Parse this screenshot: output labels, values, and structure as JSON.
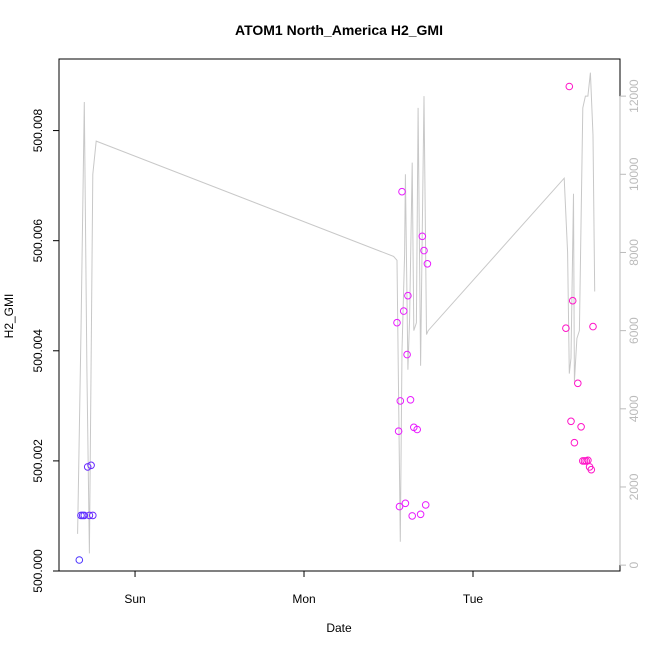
{
  "chart_data": {
    "type": "scatter",
    "title": "ATOM1 North_America H2_GMI",
    "xlabel": "Date",
    "ylabel": "H2_GMI",
    "x_ticks": [
      "Sun",
      "Mon",
      "Tue"
    ],
    "xlim_days": [
      -0.45,
      2.87
    ],
    "ylim": [
      500.0,
      500.0093
    ],
    "y_ticks": [
      {
        "value": 500.0,
        "label": "500.000"
      },
      {
        "value": 500.002,
        "label": "500.002"
      },
      {
        "value": 500.004,
        "label": "500.004"
      },
      {
        "value": 500.006,
        "label": "500.006"
      },
      {
        "value": 500.008,
        "label": "500.008"
      }
    ],
    "y2_lim": [
      -150,
      12950
    ],
    "y2_ticks": [
      {
        "value": 0,
        "label": "0"
      },
      {
        "value": 2000,
        "label": "2000"
      },
      {
        "value": 4000,
        "label": "4000"
      },
      {
        "value": 6000,
        "label": "6000"
      },
      {
        "value": 8000,
        "label": "8000"
      },
      {
        "value": 10000,
        "label": "10000"
      },
      {
        "value": 12000,
        "label": "12000"
      }
    ],
    "grid": false,
    "legend": "none",
    "colors": {
      "line": "#c8c8c8",
      "axis": "#000000",
      "right_axis": "#bbbbbb"
    },
    "points": [
      {
        "x": -0.33,
        "y": 500.0002,
        "color": "#4b33ff"
      },
      {
        "x": -0.32,
        "y": 500.00101,
        "color": "#5d2eff"
      },
      {
        "x": -0.31,
        "y": 500.00101,
        "color": "#5d2eff"
      },
      {
        "x": -0.3,
        "y": 500.00101,
        "color": "#5d2eff"
      },
      {
        "x": -0.28,
        "y": 500.00189,
        "color": "#6a2bff"
      },
      {
        "x": -0.27,
        "y": 500.00101,
        "color": "#6a2bff"
      },
      {
        "x": -0.26,
        "y": 500.00192,
        "color": "#6a2bff"
      },
      {
        "x": -0.25,
        "y": 500.00101,
        "color": "#6a2bff"
      },
      {
        "x": 1.55,
        "y": 500.00451,
        "color": "#e81cff"
      },
      {
        "x": 1.56,
        "y": 500.00254,
        "color": "#e81cff"
      },
      {
        "x": 1.565,
        "y": 500.00117,
        "color": "#e81cff"
      },
      {
        "x": 1.57,
        "y": 500.00309,
        "color": "#e81cff"
      },
      {
        "x": 1.58,
        "y": 500.00689,
        "color": "#e81cff"
      },
      {
        "x": 1.59,
        "y": 500.00472,
        "color": "#e81cff"
      },
      {
        "x": 1.6,
        "y": 500.00123,
        "color": "#e81cff"
      },
      {
        "x": 1.61,
        "y": 500.00393,
        "color": "#e81cff"
      },
      {
        "x": 1.615,
        "y": 500.005,
        "color": "#e81cff"
      },
      {
        "x": 1.63,
        "y": 500.00311,
        "color": "#e81cff"
      },
      {
        "x": 1.64,
        "y": 500.001,
        "color": "#e81cff"
      },
      {
        "x": 1.65,
        "y": 500.00261,
        "color": "#e81cff"
      },
      {
        "x": 1.67,
        "y": 500.00257,
        "color": "#e81cff"
      },
      {
        "x": 1.69,
        "y": 500.00103,
        "color": "#e81cff"
      },
      {
        "x": 1.7,
        "y": 500.00608,
        "color": "#e81cff"
      },
      {
        "x": 1.71,
        "y": 500.00582,
        "color": "#e81cff"
      },
      {
        "x": 1.72,
        "y": 500.0012,
        "color": "#e81cff"
      },
      {
        "x": 1.73,
        "y": 500.00558,
        "color": "#e81cff"
      },
      {
        "x": 2.55,
        "y": 500.00441,
        "color": "#ff14c8"
      },
      {
        "x": 2.57,
        "y": 500.0088,
        "color": "#ff14c8"
      },
      {
        "x": 2.58,
        "y": 500.00272,
        "color": "#ff14c8"
      },
      {
        "x": 2.59,
        "y": 500.00491,
        "color": "#ff14c8"
      },
      {
        "x": 2.6,
        "y": 500.00233,
        "color": "#ff14c8"
      },
      {
        "x": 2.62,
        "y": 500.00341,
        "color": "#ff14c8"
      },
      {
        "x": 2.64,
        "y": 500.00262,
        "color": "#ff14c8"
      },
      {
        "x": 2.65,
        "y": 500.002,
        "color": "#ff14c8"
      },
      {
        "x": 2.66,
        "y": 500.002,
        "color": "#ff14c8"
      },
      {
        "x": 2.67,
        "y": 500.002,
        "color": "#ff14c8"
      },
      {
        "x": 2.68,
        "y": 500.00201,
        "color": "#ff14c8"
      },
      {
        "x": 2.69,
        "y": 500.00189,
        "color": "#ff14c8"
      },
      {
        "x": 2.7,
        "y": 500.00184,
        "color": "#ff14c8"
      },
      {
        "x": 2.71,
        "y": 500.00444,
        "color": "#ff14c8"
      }
    ],
    "line_series": {
      "axis": "right",
      "x": [
        -0.34,
        -0.32,
        -0.3,
        -0.285,
        -0.27,
        -0.25,
        -0.23,
        1.53,
        1.55,
        1.57,
        1.58,
        1.595,
        1.6,
        1.615,
        1.625,
        1.64,
        1.65,
        1.665,
        1.675,
        1.69,
        1.7,
        1.71,
        1.725,
        1.735,
        2.54,
        2.56,
        2.57,
        2.58,
        2.595,
        2.6,
        2.615,
        2.63,
        2.65,
        2.665,
        2.68,
        2.695,
        2.71,
        2.72
      ],
      "y": [
        800,
        6000,
        11850,
        5000,
        300,
        10000,
        10850,
        7900,
        7800,
        600,
        5500,
        7950,
        10000,
        5000,
        6300,
        10300,
        6000,
        6200,
        11700,
        5100,
        8600,
        12000,
        5900,
        6000,
        9900,
        8000,
        4900,
        5300,
        9500,
        4700,
        5800,
        6000,
        11700,
        12000,
        12000,
        12600,
        11000,
        7000
      ]
    }
  }
}
